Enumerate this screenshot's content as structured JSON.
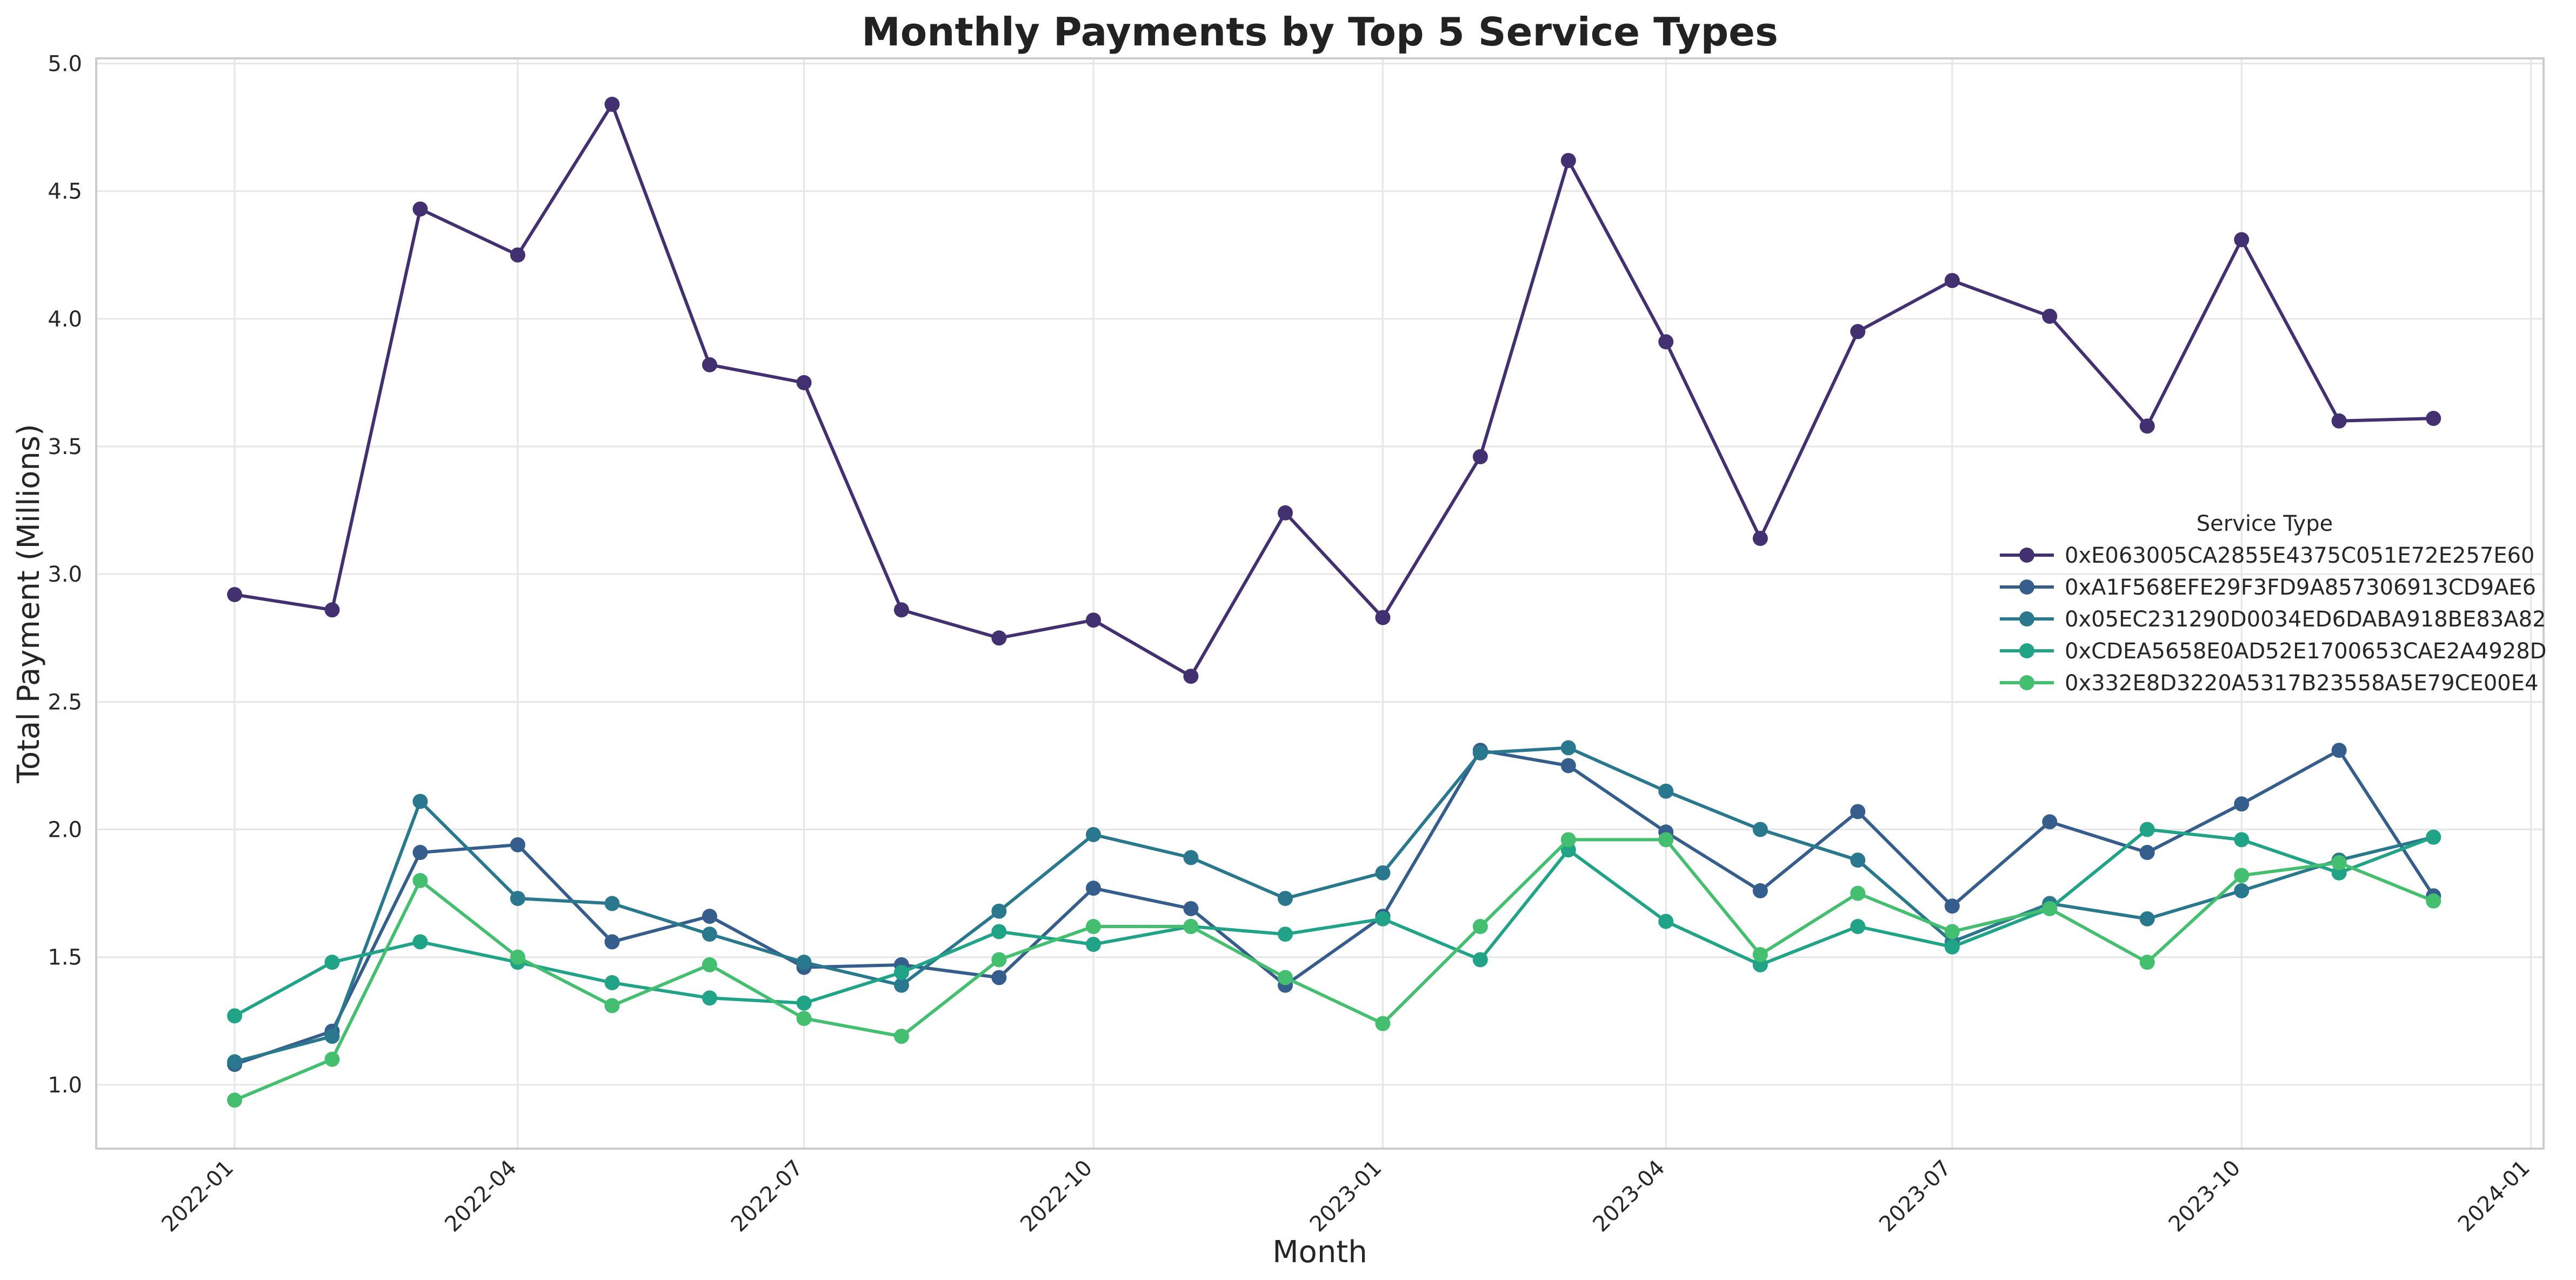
{
  "chart_data": {
    "type": "line",
    "title": "Monthly Payments by Top 5 Service Types",
    "xlabel": "Month",
    "ylabel": "Total Payment (Millions)",
    "xlim": [
      "2021-11-18",
      "2024-01-05"
    ],
    "ylim": [
      0.75,
      5.02
    ],
    "x_ticks": [
      "2022-01",
      "2022-04",
      "2022-07",
      "2022-10",
      "2023-01",
      "2023-04",
      "2023-07",
      "2023-10",
      "2024-01"
    ],
    "y_ticks": [
      1.0,
      1.5,
      2.0,
      2.5,
      3.0,
      3.5,
      4.0,
      4.5,
      5.0
    ],
    "y_tick_labels": [
      "1.0",
      "1.5",
      "2.0",
      "2.5",
      "3.0",
      "3.5",
      "4.0",
      "4.5",
      "5.0"
    ],
    "grid": true,
    "legend": {
      "title": "Service Type",
      "position": "center-right"
    },
    "x": [
      "2022-01",
      "2022-02",
      "2022-03",
      "2022-04",
      "2022-05",
      "2022-06",
      "2022-07",
      "2022-08",
      "2022-09",
      "2022-10",
      "2022-11",
      "2022-12",
      "2023-01",
      "2023-02",
      "2023-03",
      "2023-04",
      "2023-05",
      "2023-06",
      "2023-07",
      "2023-08",
      "2023-09",
      "2023-10",
      "2023-11",
      "2023-12"
    ],
    "series": [
      {
        "name": "0xE063005CA2855E4375C051E72E257E60",
        "color": "#433071",
        "values": [
          2.92,
          2.86,
          4.43,
          4.25,
          4.84,
          3.82,
          3.75,
          2.86,
          2.75,
          2.82,
          2.6,
          3.24,
          2.83,
          3.46,
          4.62,
          3.91,
          3.14,
          3.95,
          4.15,
          4.01,
          3.58,
          4.31,
          3.6,
          3.61
        ]
      },
      {
        "name": "0xA1F568EFE29F3FD9A857306913CD9AE6",
        "color": "#355e8d",
        "values": [
          1.08,
          1.21,
          1.91,
          1.94,
          1.56,
          1.66,
          1.46,
          1.47,
          1.42,
          1.77,
          1.69,
          1.39,
          1.66,
          2.31,
          2.25,
          1.99,
          1.76,
          2.07,
          1.7,
          2.03,
          1.91,
          2.1,
          2.31,
          1.74
        ]
      },
      {
        "name": "0x05EC231290D0034ED6DABA918BE83A82",
        "color": "#2a788e",
        "values": [
          1.09,
          1.19,
          2.11,
          1.73,
          1.71,
          1.59,
          1.48,
          1.39,
          1.68,
          1.98,
          1.89,
          1.73,
          1.83,
          2.3,
          2.32,
          2.15,
          2.0,
          1.88,
          1.56,
          1.71,
          1.65,
          1.76,
          1.88,
          1.97
        ]
      },
      {
        "name": "0xCDEA5658E0AD52E1700653CAE2A4928D",
        "color": "#20a386",
        "values": [
          1.27,
          1.48,
          1.56,
          1.48,
          1.4,
          1.34,
          1.32,
          1.44,
          1.6,
          1.55,
          1.62,
          1.59,
          1.65,
          1.49,
          1.92,
          1.64,
          1.47,
          1.62,
          1.54,
          1.69,
          2.0,
          1.96,
          1.83,
          1.97
        ]
      },
      {
        "name": "0x332E8D3220A5317B23558A5E79CE00E4",
        "color": "#44bf70",
        "values": [
          0.94,
          1.1,
          1.8,
          1.5,
          1.31,
          1.47,
          1.26,
          1.19,
          1.49,
          1.62,
          1.62,
          1.42,
          1.24,
          1.62,
          1.96,
          1.96,
          1.51,
          1.75,
          1.6,
          1.69,
          1.48,
          1.82,
          1.87,
          1.72
        ]
      }
    ]
  }
}
